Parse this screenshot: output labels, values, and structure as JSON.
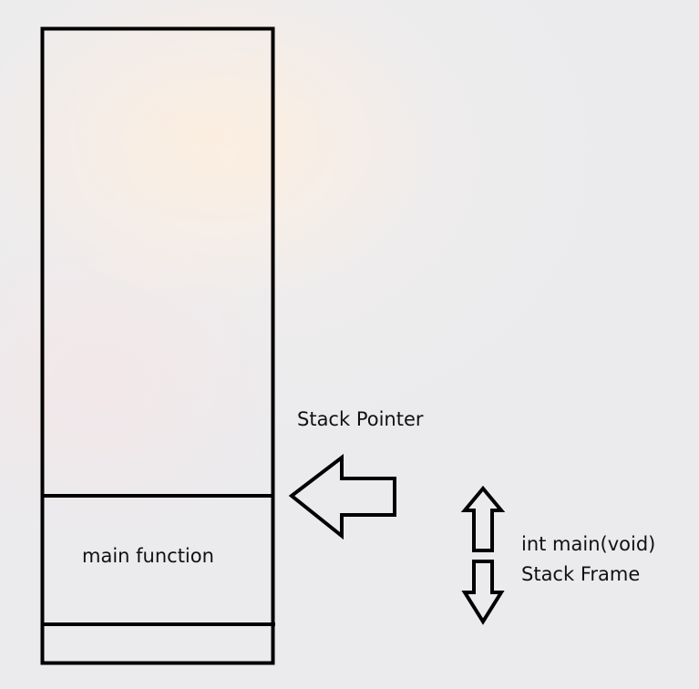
{
  "diagram": {
    "stack_pointer_label": "Stack Pointer",
    "main_function_label": "main function",
    "frame_signature_label": "int main(void)",
    "frame_label": "Stack Frame"
  },
  "colors": {
    "stroke": "#000000",
    "text": "#111111"
  },
  "icons": {
    "pointer_arrow": "arrow-left-icon",
    "frame_up_arrow": "arrow-up-icon",
    "frame_down_arrow": "arrow-down-icon"
  }
}
